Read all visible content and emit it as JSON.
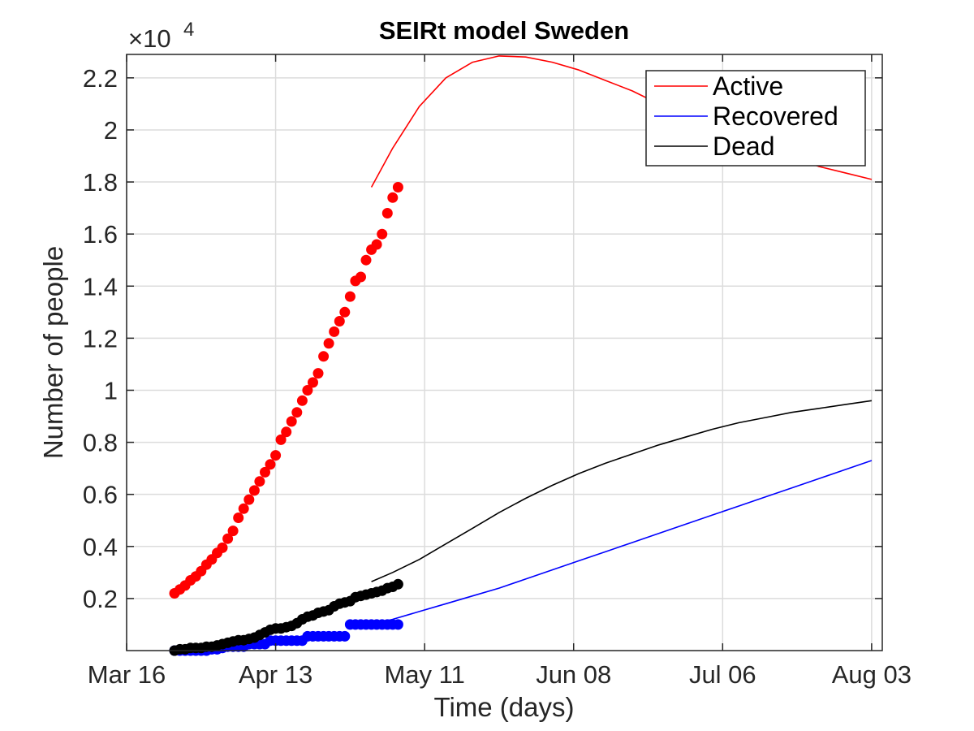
{
  "chart_data": {
    "type": "line",
    "title": "SEIRt model Sweden",
    "xlabel": "Time (days)",
    "ylabel": "Number of people",
    "y_exponent_label": "×10",
    "y_exponent_power": "4",
    "x_ticks": [
      {
        "day": 0,
        "label": "Mar 16"
      },
      {
        "day": 28,
        "label": "Apr 13"
      },
      {
        "day": 56,
        "label": "May 11"
      },
      {
        "day": 84,
        "label": "Jun 08"
      },
      {
        "day": 112,
        "label": "Jul 06"
      },
      {
        "day": 140,
        "label": "Aug 03"
      }
    ],
    "y_ticks": [
      {
        "value": 2000,
        "label": "0.2"
      },
      {
        "value": 4000,
        "label": "0.4"
      },
      {
        "value": 6000,
        "label": "0.6"
      },
      {
        "value": 8000,
        "label": "0.8"
      },
      {
        "value": 10000,
        "label": "1"
      },
      {
        "value": 12000,
        "label": "1.2"
      },
      {
        "value": 14000,
        "label": "1.4"
      },
      {
        "value": 16000,
        "label": "1.6"
      },
      {
        "value": 18000,
        "label": "1.8"
      },
      {
        "value": 20000,
        "label": "2"
      },
      {
        "value": 22000,
        "label": "2.2"
      }
    ],
    "xlim": [
      0,
      142
    ],
    "ylim": [
      0,
      22900
    ],
    "grid": true,
    "legend_position": "top-right",
    "series": [
      {
        "name": "Active",
        "color": "#ff0000",
        "model": [
          [
            46,
            17800
          ],
          [
            50,
            19300
          ],
          [
            55,
            20900
          ],
          [
            60,
            22000
          ],
          [
            65,
            22600
          ],
          [
            70,
            22840
          ],
          [
            75,
            22800
          ],
          [
            80,
            22600
          ],
          [
            85,
            22300
          ],
          [
            90,
            21900
          ],
          [
            95,
            21500
          ],
          [
            100,
            21000
          ],
          [
            105,
            20550
          ],
          [
            110,
            20100
          ],
          [
            115,
            19700
          ],
          [
            120,
            19300
          ],
          [
            125,
            18950
          ],
          [
            130,
            18600
          ],
          [
            135,
            18350
          ],
          [
            140,
            18100
          ]
        ],
        "observed": [
          [
            9,
            2200
          ],
          [
            10,
            2350
          ],
          [
            11,
            2500
          ],
          [
            12,
            2700
          ],
          [
            13,
            2850
          ],
          [
            14,
            3050
          ],
          [
            15,
            3300
          ],
          [
            16,
            3500
          ],
          [
            17,
            3750
          ],
          [
            18,
            3950
          ],
          [
            19,
            4300
          ],
          [
            20,
            4600
          ],
          [
            21,
            5100
          ],
          [
            22,
            5450
          ],
          [
            23,
            5800
          ],
          [
            24,
            6150
          ],
          [
            25,
            6500
          ],
          [
            26,
            6850
          ],
          [
            27,
            7150
          ],
          [
            28,
            7500
          ],
          [
            29,
            8100
          ],
          [
            30,
            8400
          ],
          [
            31,
            8800
          ],
          [
            32,
            9150
          ],
          [
            33,
            9600
          ],
          [
            34,
            10000
          ],
          [
            35,
            10300
          ],
          [
            36,
            10650
          ],
          [
            37,
            11300
          ],
          [
            38,
            11800
          ],
          [
            39,
            12250
          ],
          [
            40,
            12650
          ],
          [
            41,
            13000
          ],
          [
            42,
            13600
          ],
          [
            43,
            14200
          ],
          [
            44,
            14350
          ],
          [
            45,
            15000
          ],
          [
            46,
            15400
          ],
          [
            47,
            15600
          ],
          [
            48,
            16000
          ],
          [
            49,
            16800
          ],
          [
            50,
            17400
          ],
          [
            51,
            17800
          ]
        ]
      },
      {
        "name": "Recovered",
        "color": "#0000ff",
        "model": [
          [
            46,
            1000
          ],
          [
            50,
            1200
          ],
          [
            55,
            1500
          ],
          [
            60,
            1800
          ],
          [
            65,
            2100
          ],
          [
            70,
            2400
          ],
          [
            75,
            2750
          ],
          [
            80,
            3100
          ],
          [
            85,
            3450
          ],
          [
            90,
            3800
          ],
          [
            95,
            4150
          ],
          [
            100,
            4500
          ],
          [
            105,
            4850
          ],
          [
            110,
            5200
          ],
          [
            115,
            5550
          ],
          [
            120,
            5900
          ],
          [
            125,
            6250
          ],
          [
            130,
            6600
          ],
          [
            135,
            6950
          ],
          [
            140,
            7300
          ]
        ],
        "observed": [
          [
            9,
            0
          ],
          [
            10,
            0
          ],
          [
            11,
            0
          ],
          [
            12,
            0
          ],
          [
            13,
            0
          ],
          [
            14,
            0
          ],
          [
            15,
            0
          ],
          [
            16,
            50
          ],
          [
            17,
            50
          ],
          [
            18,
            100
          ],
          [
            19,
            150
          ],
          [
            20,
            150
          ],
          [
            21,
            150
          ],
          [
            22,
            150
          ],
          [
            23,
            250
          ],
          [
            24,
            250
          ],
          [
            25,
            250
          ],
          [
            26,
            250
          ],
          [
            27,
            380
          ],
          [
            28,
            380
          ],
          [
            29,
            380
          ],
          [
            30,
            380
          ],
          [
            31,
            380
          ],
          [
            32,
            380
          ],
          [
            33,
            380
          ],
          [
            34,
            550
          ],
          [
            35,
            550
          ],
          [
            36,
            550
          ],
          [
            37,
            550
          ],
          [
            38,
            550
          ],
          [
            39,
            550
          ],
          [
            40,
            550
          ],
          [
            41,
            550
          ],
          [
            42,
            1000
          ],
          [
            43,
            1000
          ],
          [
            44,
            1000
          ],
          [
            45,
            1000
          ],
          [
            46,
            1000
          ],
          [
            47,
            1000
          ],
          [
            48,
            1000
          ],
          [
            49,
            1000
          ],
          [
            50,
            1000
          ],
          [
            51,
            1000
          ]
        ]
      },
      {
        "name": "Dead",
        "color": "#000000",
        "model": [
          [
            46,
            2650
          ],
          [
            50,
            3000
          ],
          [
            55,
            3500
          ],
          [
            60,
            4100
          ],
          [
            65,
            4700
          ],
          [
            70,
            5300
          ],
          [
            75,
            5850
          ],
          [
            80,
            6350
          ],
          [
            85,
            6800
          ],
          [
            90,
            7200
          ],
          [
            95,
            7550
          ],
          [
            100,
            7900
          ],
          [
            105,
            8200
          ],
          [
            110,
            8500
          ],
          [
            115,
            8750
          ],
          [
            120,
            8950
          ],
          [
            125,
            9150
          ],
          [
            130,
            9300
          ],
          [
            135,
            9450
          ],
          [
            140,
            9600
          ]
        ],
        "observed": [
          [
            9,
            0
          ],
          [
            10,
            50
          ],
          [
            11,
            50
          ],
          [
            12,
            100
          ],
          [
            13,
            100
          ],
          [
            14,
            100
          ],
          [
            15,
            150
          ],
          [
            16,
            150
          ],
          [
            17,
            200
          ],
          [
            18,
            250
          ],
          [
            19,
            300
          ],
          [
            20,
            350
          ],
          [
            21,
            400
          ],
          [
            22,
            400
          ],
          [
            23,
            450
          ],
          [
            24,
            500
          ],
          [
            25,
            600
          ],
          [
            26,
            700
          ],
          [
            27,
            800
          ],
          [
            28,
            850
          ],
          [
            29,
            850
          ],
          [
            30,
            900
          ],
          [
            31,
            950
          ],
          [
            32,
            1050
          ],
          [
            33,
            1200
          ],
          [
            34,
            1300
          ],
          [
            35,
            1350
          ],
          [
            36,
            1450
          ],
          [
            37,
            1500
          ],
          [
            38,
            1550
          ],
          [
            39,
            1700
          ],
          [
            40,
            1800
          ],
          [
            41,
            1850
          ],
          [
            42,
            1900
          ],
          [
            43,
            2050
          ],
          [
            44,
            2100
          ],
          [
            45,
            2150
          ],
          [
            46,
            2200
          ],
          [
            47,
            2250
          ],
          [
            48,
            2300
          ],
          [
            49,
            2400
          ],
          [
            50,
            2450
          ],
          [
            51,
            2550
          ]
        ]
      }
    ]
  }
}
